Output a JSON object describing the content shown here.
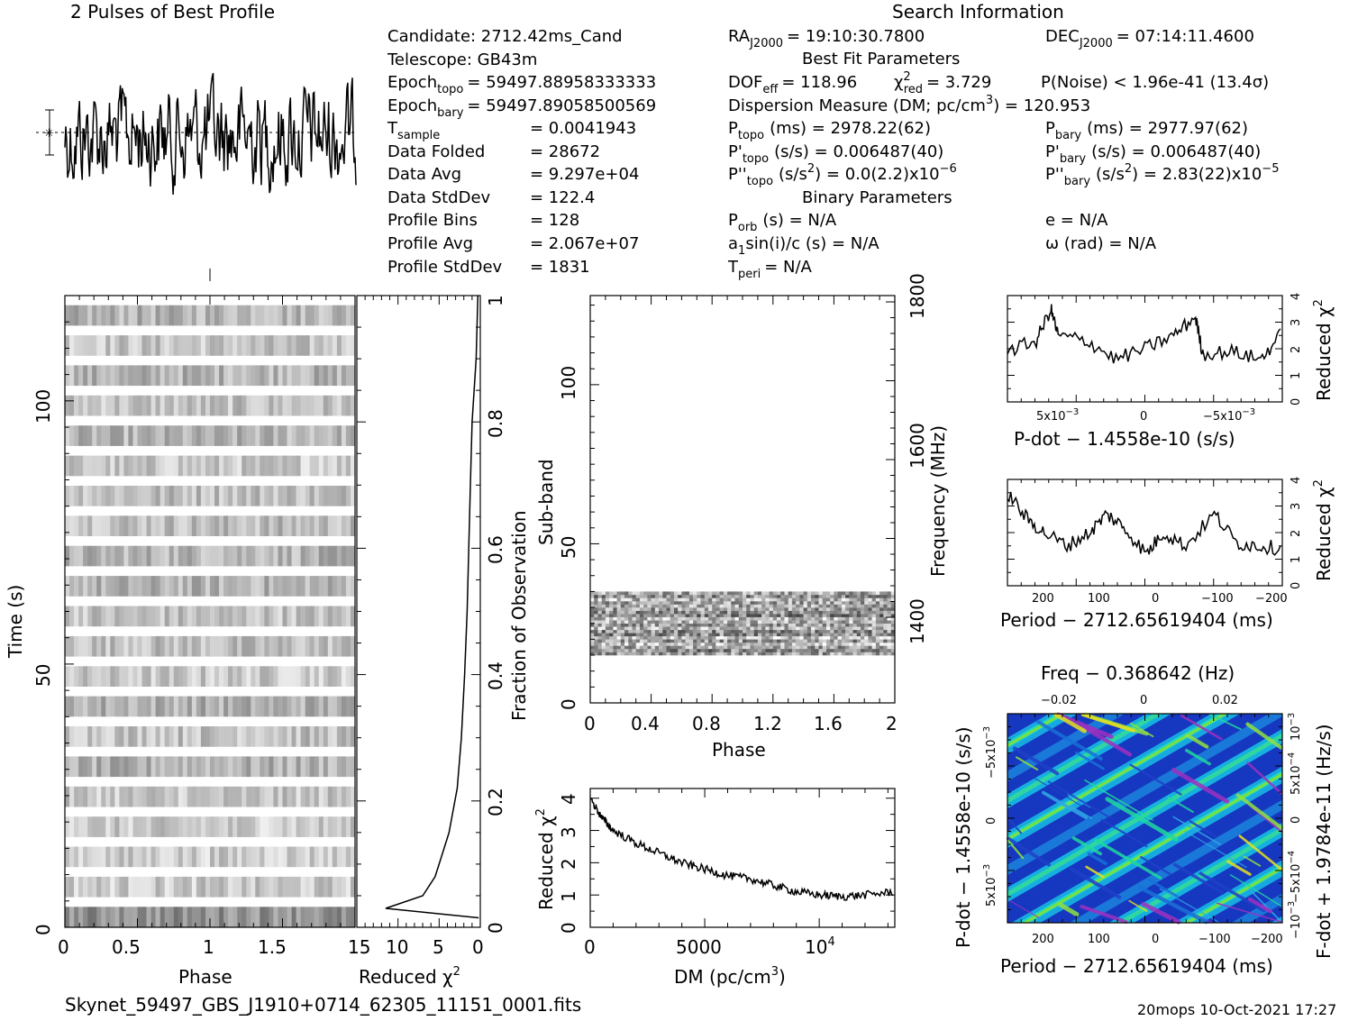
{
  "header": {
    "profile_title": "2 Pulses of Best Profile",
    "search_title": "Search Information",
    "best_fit_title": "Best Fit Parameters",
    "binary_title": "Binary Parameters"
  },
  "search_info": {
    "candidate": "Candidate:  2712.42ms_Cand",
    "telescope": "Telescope:  GB43m",
    "epoch_topo": "= 59497.88958333333",
    "epoch_bary": "= 59497.89058500569",
    "t_sample": "=   0.0041943",
    "data_folded": "=   28672",
    "data_avg": "=   9.297e+04",
    "data_stddev": "=   122.4",
    "profile_bins": "=   128",
    "profile_avg": "=   2.067e+07",
    "profile_stddev": "=   1831",
    "labels": {
      "epoch": "Epoch",
      "topo": "topo",
      "bary": "bary",
      "t": "T",
      "sample": "sample",
      "data_folded": "Data Folded",
      "data_avg": "Data Avg",
      "data_stddev": "Data StdDev",
      "profile_bins": "Profile Bins",
      "profile_avg": "Profile Avg",
      "profile_stddev": "Profile StdDev"
    },
    "ra_label": "RA",
    "ra_sub": "J2000",
    "ra_value": "= 19:10:30.7800",
    "dec_label": "DEC",
    "dec_sub": "J2000",
    "dec_value": "= 07:14:11.4600"
  },
  "best_fit": {
    "dof_label": "DOF",
    "dof_sub": "eff",
    "dof_value": "= 118.96",
    "chi_label": "χ",
    "chi_sup": "2",
    "chi_sub": "red",
    "chi_value": "= 3.729",
    "pnoise": "P(Noise) < 1.96e-41   (13.4σ)",
    "dm": "Dispersion Measure (DM; pc/cm",
    "dm_sup": "3",
    "dm_value": ") = 120.953",
    "p_topo_value": "(ms) =  2978.22(62)",
    "p_bary_value": "(ms) =  2977.97(62)",
    "pd_topo_value": "(s/s) =  0.006487(40)",
    "pd_bary_value": "(s/s) =  0.006487(40)",
    "pdd_topo_value": "(s/s",
    "pdd_topo_value2": ") = 0.0(2.2)x10",
    "pdd_topo_exp": "−6",
    "pdd_bary_value": "(s/s",
    "pdd_bary_value2": ") =  2.83(22)x10",
    "pdd_bary_exp": "−5",
    "p": "P",
    "pd": "P'",
    "pdd": "P''",
    "topo": "topo",
    "bary": "bary",
    "two": "2"
  },
  "binary": {
    "porb": "P",
    "porb_sub": "orb",
    "porb_value": "(s) = N/A",
    "e": "e = N/A",
    "a1": "a",
    "a1_sub": "1",
    "a1_value": "sin(i)/c (s) = N/A",
    "omega": "ω (rad) = N/A",
    "tperi": "T",
    "tperi_sub": "peri",
    "tperi_value": "= N/A"
  },
  "footer": {
    "filename": "Skynet_59497_GBS_J1910+0714_62305_11151_0001.fits",
    "stamp": "20mops 10-Oct-2021 17:27"
  },
  "chart_data": [
    {
      "type": "line",
      "id": "profile",
      "title": "2 Pulses of Best Profile",
      "x": "phase 0-2 (256 bins)",
      "note": "noise-like folded profile with dotted mean line and error bar"
    },
    {
      "type": "heatmap",
      "id": "phase-time",
      "xlabel": "Phase",
      "ylabel": "Time (s)",
      "xticks": [
        "0",
        "0.5",
        "1",
        "1.5"
      ],
      "yticks": [
        "0",
        "50",
        "100"
      ],
      "xlim": [
        0,
        2
      ],
      "ylim": [
        0,
        120
      ]
    },
    {
      "type": "line",
      "id": "time-chi2",
      "xlabel": "Reduced χ",
      "xlabel_sup": "2",
      "ylabel": "Fraction of Observation",
      "xticks": [
        "15",
        "10",
        "5",
        "0"
      ],
      "yticks": [
        "0",
        "0.2",
        "0.4",
        "0.6",
        "0.8",
        "1"
      ],
      "xlim": [
        15,
        0
      ],
      "ylim": [
        0,
        1
      ],
      "points": [
        [
          0.3,
          1.0
        ],
        [
          0.5,
          0.9
        ],
        [
          1.0,
          0.8
        ],
        [
          1.2,
          0.7
        ],
        [
          1.4,
          0.6
        ],
        [
          1.6,
          0.5
        ],
        [
          1.9,
          0.4
        ],
        [
          2.3,
          0.3
        ],
        [
          2.8,
          0.22
        ],
        [
          3.8,
          0.15
        ],
        [
          5.0,
          0.1
        ],
        [
          5.5,
          0.08
        ],
        [
          7.0,
          0.05
        ],
        [
          11.5,
          0.03
        ],
        [
          0.2,
          0.015
        ]
      ]
    },
    {
      "type": "heatmap",
      "id": "subband-phase",
      "xlabel": "Phase",
      "ylabel": "Sub-band",
      "y2label": "Frequency (MHz)",
      "xticks": [
        "0",
        "0.4",
        "0.8",
        "1.2",
        "1.6",
        "2"
      ],
      "yticks": [
        "0",
        "50",
        "100"
      ],
      "y2ticks": [
        "1400",
        "1600",
        "1800"
      ],
      "xlim": [
        0,
        2
      ],
      "ylim": [
        0,
        128
      ],
      "active_subbands": [
        15,
        35
      ]
    },
    {
      "type": "line",
      "id": "dm-chi2",
      "xlabel": "DM (pc/cm",
      "xlabel_sup": "3",
      "xlabel_end": ")",
      "ylabel": "Reduced χ",
      "ylabel_sup": "2",
      "xticks": [
        "0",
        "5000",
        "10"
      ],
      "xtick_exp": "4",
      "yticks": [
        "0",
        "1",
        "2",
        "3",
        "4"
      ],
      "xlim": [
        0,
        13300
      ],
      "ylim": [
        0,
        4.3
      ],
      "points": [
        [
          0,
          4.0
        ],
        [
          500,
          3.4
        ],
        [
          1000,
          3.0
        ],
        [
          2000,
          2.6
        ],
        [
          3000,
          2.3
        ],
        [
          4000,
          2.0
        ],
        [
          5000,
          1.8
        ],
        [
          6000,
          1.6
        ],
        [
          7000,
          1.5
        ],
        [
          8000,
          1.3
        ],
        [
          9000,
          1.1
        ],
        [
          10000,
          1.0
        ],
        [
          11000,
          0.95
        ],
        [
          12000,
          1.0
        ],
        [
          13300,
          1.1
        ]
      ]
    },
    {
      "type": "line",
      "id": "pdot-chi2",
      "xlabel": "P-dot − 1.4558e-10 (s/s)",
      "ylabel": "Reduced χ",
      "ylabel_sup": "2",
      "xticks": [
        "5x10",
        "0",
        "−5x10"
      ],
      "xtick_exp": "−3",
      "yticks": [
        "0",
        "1",
        "2",
        "3",
        "4"
      ],
      "xlim": [
        0.0095,
        -0.0095
      ],
      "ylim": [
        0,
        4
      ],
      "points": [
        [
          0.0095,
          1.9
        ],
        [
          0.0075,
          2.3
        ],
        [
          0.0065,
          3.5
        ],
        [
          0.006,
          2.5
        ],
        [
          0.004,
          2.3
        ],
        [
          0.002,
          1.6
        ],
        [
          0.0,
          2.0
        ],
        [
          -0.002,
          2.5
        ],
        [
          -0.0035,
          3.2
        ],
        [
          -0.004,
          1.8
        ],
        [
          -0.006,
          1.9
        ],
        [
          -0.008,
          1.6
        ],
        [
          -0.0095,
          2.6
        ]
      ]
    },
    {
      "type": "line",
      "id": "period-chi2",
      "xlabel": "Period − 2712.65619404 (ms)",
      "ylabel": "Reduced χ",
      "ylabel_sup": "2",
      "xticks": [
        "200",
        "100",
        "0",
        "−100",
        "−200"
      ],
      "yticks": [
        "0",
        "1",
        "2",
        "3",
        "4"
      ],
      "xlim": [
        265,
        -220
      ],
      "ylim": [
        0,
        4
      ],
      "points": [
        [
          265,
          3.5
        ],
        [
          230,
          2.5
        ],
        [
          200,
          2.0
        ],
        [
          160,
          1.5
        ],
        [
          120,
          2.0
        ],
        [
          90,
          2.7
        ],
        [
          60,
          2.2
        ],
        [
          20,
          1.2
        ],
        [
          -10,
          2.0
        ],
        [
          -50,
          1.5
        ],
        [
          -100,
          2.7
        ],
        [
          -140,
          1.6
        ],
        [
          -180,
          1.5
        ],
        [
          -220,
          1.4
        ]
      ]
    },
    {
      "type": "heatmap",
      "id": "ppdot-plane",
      "title": "Freq − 0.368642 (Hz)",
      "xlabel": "Period − 2712.65619404 (ms)",
      "ylabel": "P-dot − 1.4558e-10 (s/s)",
      "y2label": "F-dot + 1.9784e-11 (Hz/s)",
      "xticks": [
        "200",
        "100",
        "0",
        "−100",
        "−200"
      ],
      "x2ticks": [
        "−0.02",
        "0",
        "0.02"
      ],
      "yticks": [
        "5x10",
        "0",
        "−5x10"
      ],
      "ytick_exp": "−3",
      "y2ticks": [
        "−10",
        "−5x10",
        "0",
        "5x10",
        "10"
      ],
      "y2tick_exp": [
        "−3",
        "−4",
        "",
        "−4",
        "−3"
      ]
    }
  ]
}
